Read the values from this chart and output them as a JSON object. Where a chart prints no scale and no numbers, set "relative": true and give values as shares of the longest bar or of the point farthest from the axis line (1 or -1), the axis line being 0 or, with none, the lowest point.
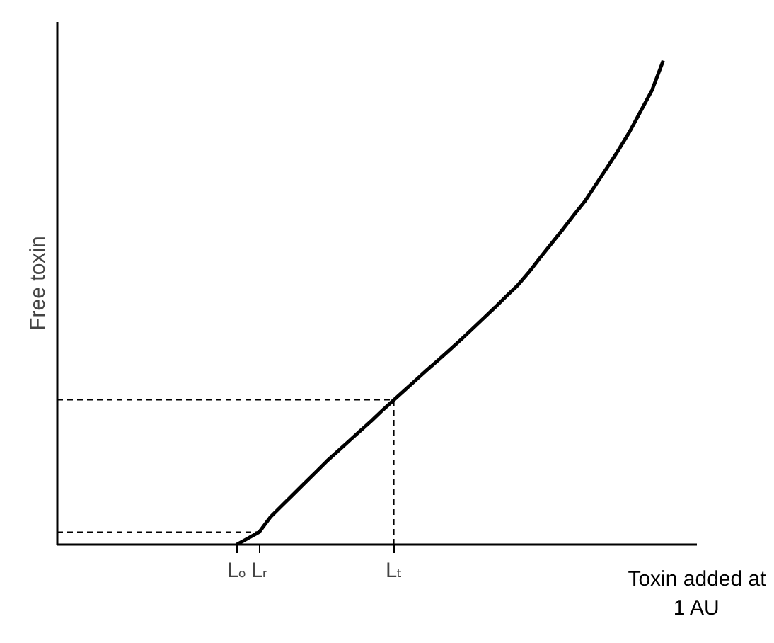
{
  "chart_data": {
    "type": "line",
    "relative": true,
    "xlabel": "Toxin added at 1 AU",
    "ylabel": "Free toxin",
    "color": "#000000",
    "grid": false,
    "legend": false,
    "line_style": "solid",
    "ref_lines": [
      {
        "axis": "y",
        "value": 0.026,
        "line_style": "dashed"
      },
      {
        "axis": "y",
        "value": 0.299,
        "line_style": "dashed"
      },
      {
        "axis": "x",
        "value": "Lₜ",
        "line_style": "dashed"
      }
    ],
    "categories": [
      null,
      null,
      null,
      null,
      null,
      null,
      null,
      null,
      null,
      null,
      null,
      null,
      null,
      null,
      null,
      null,
      "Lₒ",
      null,
      "Lᵣ",
      null,
      null,
      null,
      null,
      null,
      null,
      null,
      null,
      null,
      null,
      null,
      "Lₜ",
      null,
      null,
      null,
      null,
      null,
      null,
      null,
      null,
      null,
      null,
      null,
      null,
      null,
      null,
      null,
      null,
      null,
      null,
      null,
      null,
      null,
      null,
      null,
      null,
      null,
      null,
      null
    ],
    "values": [
      null,
      null,
      null,
      null,
      null,
      null,
      null,
      null,
      null,
      null,
      null,
      null,
      null,
      null,
      null,
      null,
      0,
      0.013,
      0.026,
      0.057,
      0.08,
      0.103,
      0.126,
      0.149,
      0.172,
      0.193,
      0.214,
      0.235,
      0.256,
      0.278,
      0.299,
      0.32,
      0.341,
      0.362,
      0.382,
      0.403,
      0.424,
      0.446,
      0.468,
      0.49,
      0.513,
      0.535,
      0.562,
      0.592,
      0.621,
      0.65,
      0.68,
      0.709,
      0.744,
      0.779,
      0.815,
      0.853,
      0.896,
      0.939,
      1.0,
      null,
      null,
      null
    ]
  }
}
